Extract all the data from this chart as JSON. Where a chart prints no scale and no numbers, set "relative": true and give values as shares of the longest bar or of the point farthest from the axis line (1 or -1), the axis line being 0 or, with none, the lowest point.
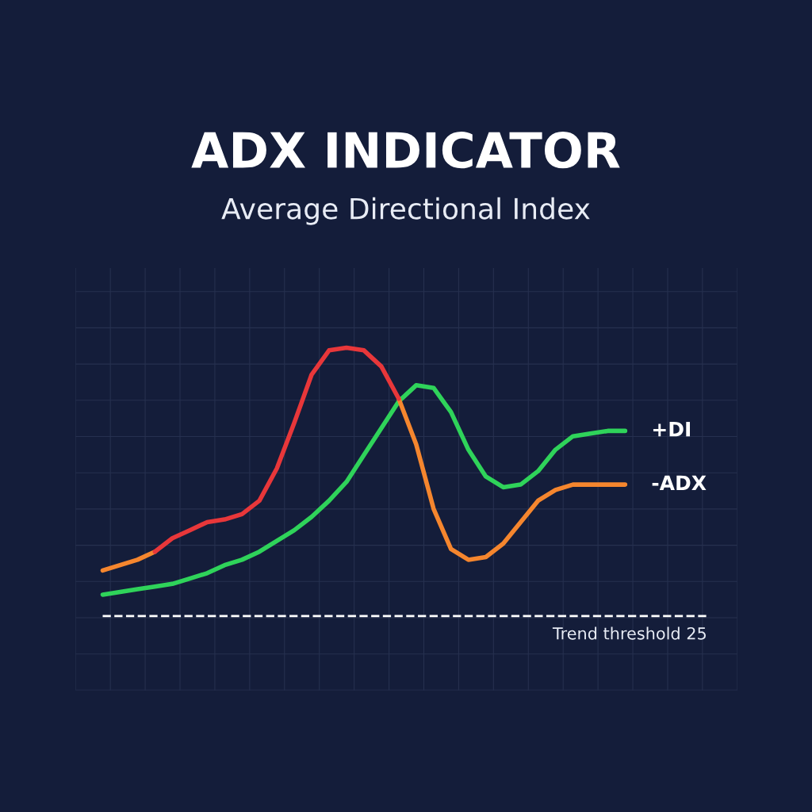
{
  "chart_data": {
    "type": "line",
    "title": "ADX INDICATOR",
    "subtitle": "Average Directional Index",
    "relative": true,
    "categories": [
      null,
      null,
      null,
      null,
      null,
      null,
      null,
      null,
      null,
      null,
      null,
      null,
      null,
      null,
      null,
      null,
      null,
      null,
      null,
      null,
      null,
      null,
      null,
      null,
      null,
      null,
      null,
      null,
      null,
      null,
      null
    ],
    "series": [
      {
        "name": "+DI",
        "color": "#2fd35a",
        "values": [
          0.08,
          0.09,
          0.1,
          0.11,
          0.12,
          0.14,
          0.16,
          0.19,
          0.21,
          0.24,
          0.28,
          0.32,
          0.37,
          0.43,
          0.5,
          0.6,
          0.7,
          0.8,
          0.86,
          0.85,
          0.76,
          0.62,
          0.52,
          0.48,
          0.49,
          0.54,
          0.62,
          0.67,
          0.68,
          0.69,
          0.69
        ]
      },
      {
        "name": "-ADX",
        "color": "#f5862e",
        "values": [
          0.17,
          0.19,
          0.21,
          0.24,
          null,
          null,
          null,
          null,
          null,
          null,
          null,
          null,
          null,
          null,
          null,
          null,
          null,
          0.81,
          0.64,
          0.4,
          0.25,
          0.21,
          0.22,
          0.27,
          0.35,
          0.43,
          0.47,
          0.49,
          0.49,
          0.49,
          0.49
        ]
      },
      {
        "color": "#e8373a",
        "values": [
          null,
          null,
          null,
          0.24,
          0.29,
          0.32,
          0.35,
          0.36,
          0.38,
          0.43,
          0.55,
          0.72,
          0.9,
          0.99,
          1.0,
          0.99,
          0.93,
          0.81,
          null,
          null,
          null,
          null,
          null,
          null,
          null,
          null,
          null,
          null,
          null,
          null,
          null
        ]
      }
    ],
    "ref_lines": [
      {
        "axis": "y",
        "value": 0,
        "label": "Trend threshold 25",
        "color": "#ffffff",
        "line_style": "dashed"
      }
    ],
    "grid": true,
    "tick_labels": false,
    "legend": false,
    "line_style": "solid",
    "marker": "none"
  }
}
